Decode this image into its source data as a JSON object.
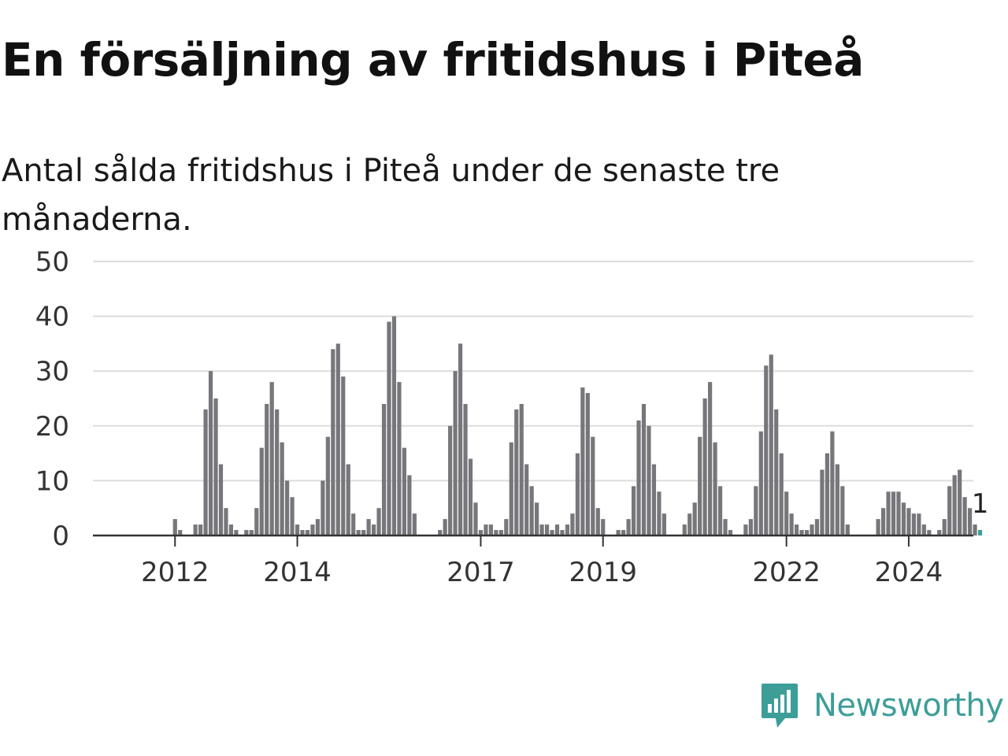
{
  "title": "En försäljning av fritidshus i Piteå",
  "subtitle": "Antal sålda fritidshus i Piteå under de senaste tre månaderna.",
  "brand": {
    "name": "Newsworthy",
    "icon": "newsworthy-logo-icon",
    "color": "#3d9e98"
  },
  "chart_data": {
    "type": "bar",
    "title": "En försäljning av fritidshus i Piteå",
    "subtitle": "Antal sålda fritidshus i Piteå under de senaste tre månaderna.",
    "ylim": [
      0,
      50
    ],
    "yticks": [
      0,
      10,
      20,
      30,
      40,
      50
    ],
    "xticks": [
      {
        "label": "2012",
        "index": 8
      },
      {
        "label": "2014",
        "index": 32
      },
      {
        "label": "2017",
        "index": 68
      },
      {
        "label": "2019",
        "index": 92
      },
      {
        "label": "2022",
        "index": 128
      },
      {
        "label": "2024",
        "index": 152
      }
    ],
    "grid": true,
    "bar_color": "#76767b",
    "highlight_color": "#3d9e98",
    "values": [
      0,
      0,
      0,
      0,
      0,
      0,
      0,
      0,
      3,
      1,
      0,
      0,
      2,
      2,
      23,
      30,
      25,
      13,
      5,
      2,
      1,
      0,
      1,
      1,
      5,
      16,
      24,
      28,
      23,
      17,
      10,
      7,
      2,
      1,
      1,
      2,
      3,
      10,
      18,
      34,
      35,
      29,
      13,
      4,
      1,
      1,
      3,
      2,
      5,
      24,
      39,
      40,
      28,
      16,
      11,
      4,
      0,
      0,
      0,
      0,
      1,
      3,
      20,
      30,
      35,
      24,
      14,
      6,
      1,
      2,
      2,
      1,
      1,
      3,
      17,
      23,
      24,
      13,
      9,
      6,
      2,
      2,
      1,
      2,
      1,
      2,
      4,
      15,
      27,
      26,
      18,
      5,
      3,
      0,
      0,
      1,
      1,
      3,
      9,
      21,
      24,
      20,
      13,
      8,
      4,
      0,
      0,
      0,
      2,
      4,
      6,
      18,
      25,
      28,
      17,
      9,
      3,
      1,
      0,
      0,
      2,
      3,
      9,
      19,
      31,
      33,
      23,
      15,
      8,
      4,
      2,
      1,
      1,
      2,
      3,
      12,
      15,
      19,
      13,
      9,
      2,
      0,
      0,
      0,
      0,
      0,
      3,
      5,
      8,
      8,
      8,
      6,
      5,
      4,
      4,
      2,
      1,
      0,
      1,
      3,
      9,
      11,
      12,
      7,
      5,
      2,
      1
    ],
    "last_value_label": "1"
  }
}
